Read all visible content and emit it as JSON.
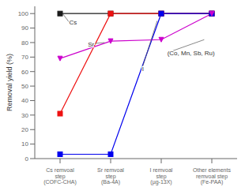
{
  "chart_data": {
    "type": "line",
    "categories": [
      "Cs remvoal\nstep\n(COFC-CHA)",
      "Sr remvoal\nstep\n(Ba-4A)",
      "I remvoal\nstep\n(µg-13X)",
      "Other elements\nremvoal step\n(Fe-PAA)"
    ],
    "series": [
      {
        "color": "#1a1a1a",
        "marker": "square",
        "line_style": "solid",
        "values": [
          100,
          100,
          100,
          100
        ]
      },
      {
        "color": "#ee1111",
        "marker": "square",
        "line_style": "solid",
        "values": [
          31,
          100,
          100,
          100
        ]
      },
      {
        "color": "#0000ee",
        "marker": "square",
        "line_style": "solid",
        "values": [
          3,
          3,
          100,
          100
        ]
      },
      {
        "color": "#cc00cc",
        "marker": "triangle_down",
        "line_style": "solid",
        "values": [
          69,
          81,
          82,
          100
        ]
      }
    ],
    "ylabel": "Removal yield (%)",
    "ylim": [
      0,
      105
    ],
    "yticks": [
      0,
      10,
      20,
      30,
      40,
      50,
      60,
      70,
      80,
      90,
      100
    ],
    "annotations": [
      {
        "text": "Cs",
        "xy": [
          0.05,
          100
        ],
        "xytext": [
          0.18,
          94
        ],
        "color": "#333333"
      },
      {
        "text": "Sr",
        "xy": [
          0.88,
          80
        ],
        "xytext": [
          0.55,
          79
        ],
        "color": "#333333"
      },
      {
        "text": "I",
        "xy": [
          1.92,
          95
        ],
        "xytext": [
          1.62,
          62
        ],
        "color": "#333333"
      },
      {
        "text": "(Co, Mn, Sb, Ru)",
        "xy": [
          2.85,
          82
        ],
        "xytext": [
          2.12,
          73
        ],
        "color": "#333333"
      }
    ]
  }
}
